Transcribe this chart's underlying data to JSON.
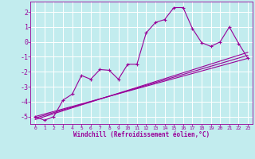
{
  "xlabel": "Windchill (Refroidissement éolien,°C)",
  "background_color": "#c2ecee",
  "grid_color": "#ffffff",
  "line_color": "#990099",
  "xlim": [
    -0.5,
    23.5
  ],
  "ylim": [
    -5.5,
    2.7
  ],
  "yticks": [
    -5,
    -4,
    -3,
    -2,
    -1,
    0,
    1,
    2
  ],
  "xticks": [
    0,
    1,
    2,
    3,
    4,
    5,
    6,
    7,
    8,
    9,
    10,
    11,
    12,
    13,
    14,
    15,
    16,
    17,
    18,
    19,
    20,
    21,
    22,
    23
  ],
  "series1_x": [
    0,
    1,
    2,
    3,
    4,
    5,
    6,
    7,
    8,
    9,
    10,
    11,
    12,
    13,
    14,
    15,
    16,
    17,
    18,
    19,
    20,
    21,
    22,
    23
  ],
  "series1_y": [
    -5.0,
    -5.25,
    -5.0,
    -3.9,
    -3.5,
    -2.25,
    -2.5,
    -1.85,
    -1.9,
    -2.5,
    -1.5,
    -1.5,
    0.6,
    1.3,
    1.5,
    2.3,
    2.3,
    0.9,
    -0.05,
    -0.3,
    0.0,
    1.0,
    -0.1,
    -1.1
  ],
  "series2_x": [
    0,
    23
  ],
  "series2_y": [
    -5.0,
    -1.1
  ],
  "series3_x": [
    0,
    23
  ],
  "series3_y": [
    -5.1,
    -0.9
  ],
  "series4_x": [
    0,
    23
  ],
  "series4_y": [
    -5.2,
    -0.7
  ]
}
